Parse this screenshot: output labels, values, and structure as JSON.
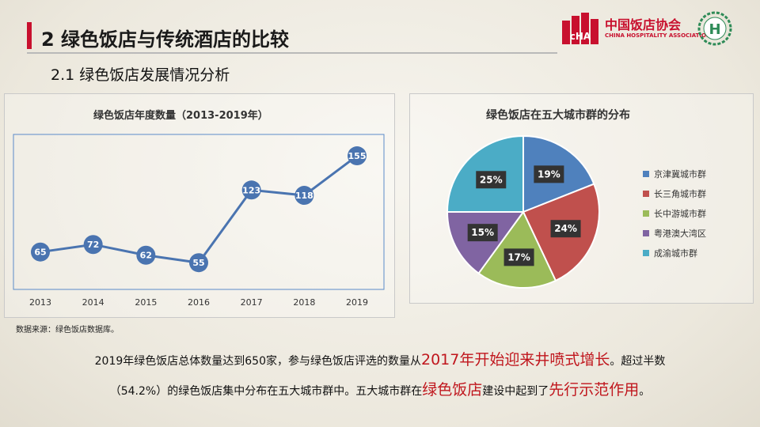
{
  "header": {
    "title": "2 绿色饭店与传统酒店的比较",
    "subtitle": "2.1 绿色饭店发展情况分析"
  },
  "logos": {
    "cha_cn": "中国饭店协会",
    "cha_en": "CHINA HOSPITALITY ASSOCIATION",
    "cha_mark": "cHA",
    "h_mark": "H"
  },
  "colors": {
    "accent": "#c8102e",
    "line": "#4a74b0",
    "marker": "#4a74b0"
  },
  "chart_data": [
    {
      "type": "line",
      "title": "绿色饭店年度数量（2013-2019年）",
      "categories": [
        "2013",
        "2014",
        "2015",
        "2016",
        "2017",
        "2018",
        "2019"
      ],
      "series": [
        {
          "values": [
            65,
            72,
            62,
            55,
            123,
            118,
            155
          ]
        }
      ],
      "ylim": [
        30,
        175
      ],
      "grid": false,
      "data_labels": true
    },
    {
      "type": "pie",
      "title": "绿色饭店在五大城市群的分布",
      "categories": [
        "京津冀城市群",
        "长三角城市群",
        "长中游城市群",
        "粤港澳大湾区",
        "成渝城市群"
      ],
      "values": [
        19,
        24,
        17,
        15,
        25
      ],
      "value_suffix": "%",
      "colors": [
        "#4f81bd",
        "#c0504d",
        "#9bbb59",
        "#8064a2",
        "#4bacc6"
      ],
      "legend": "right"
    }
  ],
  "footer": {
    "source": "数据来源：绿色饭店数据库。",
    "para1_a": "2019年绿色饭店总体数量达到650家，参与绿色饭店评选的数量从",
    "para1_hl": "2017年开始迎来井喷式增长",
    "para1_b": "。超过半数",
    "para2_a": "（54.2%）的绿色饭店集中分布在五大城市群中。五大城市群在",
    "para2_hl1": "绿色饭店",
    "para2_b": "建设中起到了",
    "para2_hl2": "先行示范作用",
    "para2_c": "。"
  }
}
